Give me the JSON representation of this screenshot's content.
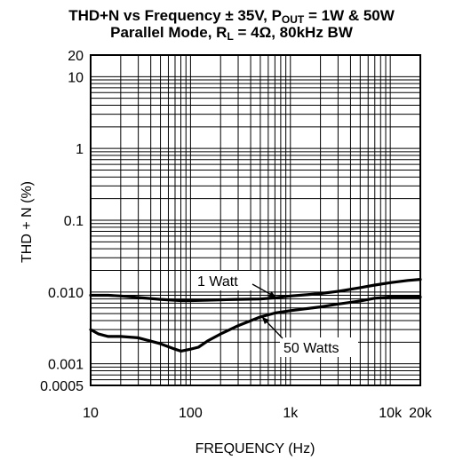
{
  "chart_data": {
    "type": "line",
    "title": {
      "line1_pre": "THD+N vs Frequency ± 35V, P",
      "line1_sub": "OUT",
      "line1_post": " = 1W & 50W",
      "line2_pre": "Parallel Mode, R",
      "line2_sub": "L",
      "line2_post": " = 4Ω, 80kHz BW"
    },
    "xlabel": "FREQUENCY (Hz)",
    "ylabel": "THD + N (%)",
    "x_scale": "log",
    "y_scale": "log",
    "xlim": [
      10,
      20000
    ],
    "ylim": [
      0.0005,
      20
    ],
    "grid": true,
    "x_ticks": [
      {
        "value": 10,
        "label": "10"
      },
      {
        "value": 100,
        "label": "100"
      },
      {
        "value": 1000,
        "label": "1k"
      },
      {
        "value": 10000,
        "label": "10k"
      },
      {
        "value": 20000,
        "label": "20k"
      }
    ],
    "y_ticks": [
      {
        "value": 20,
        "label": "20"
      },
      {
        "value": 10,
        "label": "10"
      },
      {
        "value": 1,
        "label": "1"
      },
      {
        "value": 0.1,
        "label": "0.1"
      },
      {
        "value": 0.01,
        "label": "0.010"
      },
      {
        "value": 0.001,
        "label": "0.001"
      },
      {
        "value": 0.0005,
        "label": "0.0005"
      }
    ],
    "series": [
      {
        "name": "1 Watt",
        "x": [
          10,
          15,
          20,
          30,
          50,
          80,
          100,
          150,
          200,
          300,
          500,
          700,
          1000,
          2000,
          3000,
          5000,
          7000,
          10000,
          15000,
          20000
        ],
        "y": [
          0.009,
          0.009,
          0.0088,
          0.0084,
          0.0079,
          0.0076,
          0.0076,
          0.0077,
          0.0078,
          0.0079,
          0.008,
          0.0083,
          0.0088,
          0.0095,
          0.0102,
          0.0115,
          0.0125,
          0.0135,
          0.0145,
          0.015
        ]
      },
      {
        "name": "50 Watts",
        "x": [
          10,
          12,
          15,
          20,
          30,
          50,
          70,
          80,
          100,
          120,
          150,
          200,
          300,
          500,
          700,
          1000,
          2000,
          3000,
          5000,
          7000,
          10000,
          15000,
          20000
        ],
        "y": [
          0.003,
          0.0026,
          0.0024,
          0.0024,
          0.0023,
          0.0019,
          0.0016,
          0.0015,
          0.0016,
          0.0017,
          0.0021,
          0.0026,
          0.0034,
          0.0045,
          0.0051,
          0.0055,
          0.0062,
          0.0068,
          0.0075,
          0.0082,
          0.0085,
          0.0085,
          0.0085
        ]
      }
    ],
    "annotations": [
      {
        "text": "1 Watt",
        "series": "1 Watt"
      },
      {
        "text": "50 Watts",
        "series": "50 Watts"
      }
    ]
  }
}
